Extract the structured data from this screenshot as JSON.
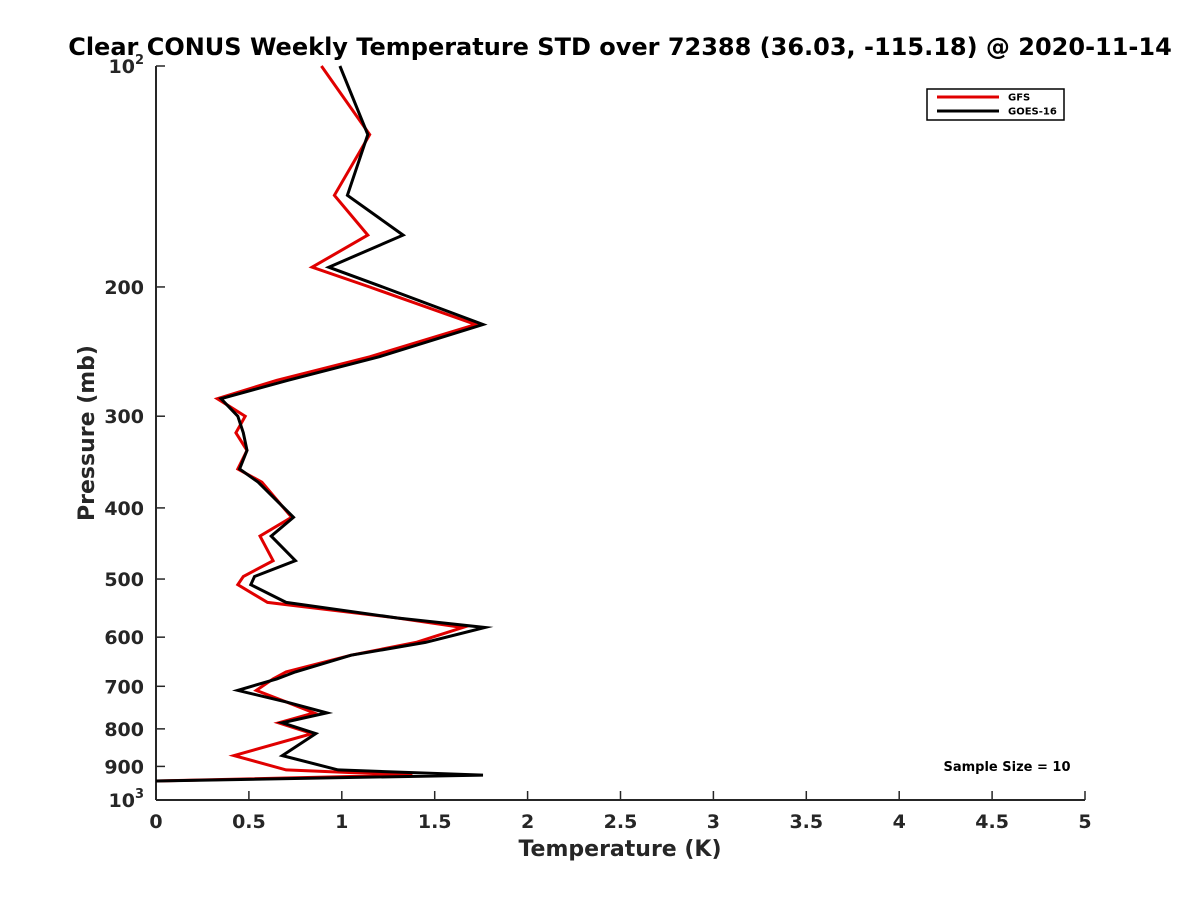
{
  "chart_data": {
    "type": "line",
    "title": "Clear CONUS Weekly Temperature STD over 72388 (36.03, -115.18) @ 2020-11-14",
    "xlabel": "Temperature (K)",
    "ylabel": "Pressure (mb)",
    "xlim": [
      0,
      5
    ],
    "ylim": [
      100,
      1000
    ],
    "y_scale": "log",
    "y_direction": "reversed",
    "x_ticks": [
      "0",
      "0.5",
      "1",
      "1.5",
      "2",
      "2.5",
      "3",
      "3.5",
      "4",
      "4.5",
      "5"
    ],
    "y_ticks": [
      {
        "value": 100,
        "base": "10",
        "exp": "2"
      },
      {
        "value": 200,
        "label": "200"
      },
      {
        "value": 300,
        "label": "300"
      },
      {
        "value": 400,
        "label": "400"
      },
      {
        "value": 500,
        "label": "500"
      },
      {
        "value": 600,
        "label": "600"
      },
      {
        "value": 700,
        "label": "700"
      },
      {
        "value": 800,
        "label": "800"
      },
      {
        "value": 900,
        "label": "900"
      },
      {
        "value": 1000,
        "base": "10",
        "exp": "3"
      }
    ],
    "grid": false,
    "legend_position": "top-right",
    "annotation": "Sample Size = 10",
    "series": [
      {
        "name": "GFS",
        "color": "#e00000",
        "points": [
          [
            0.89,
            100
          ],
          [
            1.15,
            124
          ],
          [
            0.96,
            150
          ],
          [
            1.14,
            170
          ],
          [
            0.84,
            188
          ],
          [
            1.15,
            200
          ],
          [
            1.72,
            225
          ],
          [
            1.15,
            249
          ],
          [
            0.65,
            268
          ],
          [
            0.33,
            284
          ],
          [
            0.48,
            300
          ],
          [
            0.43,
            316
          ],
          [
            0.49,
            334
          ],
          [
            0.44,
            354
          ],
          [
            0.57,
            369
          ],
          [
            0.73,
            412
          ],
          [
            0.56,
            437
          ],
          [
            0.63,
            472
          ],
          [
            0.47,
            496
          ],
          [
            0.44,
            509
          ],
          [
            0.6,
            538
          ],
          [
            1.3,
            565
          ],
          [
            1.65,
            582
          ],
          [
            1.4,
            610
          ],
          [
            1.05,
            635
          ],
          [
            0.7,
            669
          ],
          [
            0.63,
            684
          ],
          [
            0.54,
            709
          ],
          [
            0.7,
            735
          ],
          [
            0.85,
            761
          ],
          [
            0.66,
            785
          ],
          [
            0.84,
            812
          ],
          [
            0.42,
            870
          ],
          [
            0.7,
            910
          ],
          [
            1.38,
            925
          ],
          [
            0.0,
            942
          ]
        ]
      },
      {
        "name": "GOES-16",
        "color": "#000000",
        "points": [
          [
            0.99,
            100
          ],
          [
            1.14,
            124
          ],
          [
            1.03,
            150
          ],
          [
            1.33,
            170
          ],
          [
            0.93,
            188
          ],
          [
            1.22,
            200
          ],
          [
            1.76,
            225
          ],
          [
            1.2,
            249
          ],
          [
            0.71,
            268
          ],
          [
            0.35,
            284
          ],
          [
            0.44,
            300
          ],
          [
            0.47,
            316
          ],
          [
            0.49,
            334
          ],
          [
            0.45,
            354
          ],
          [
            0.55,
            369
          ],
          [
            0.74,
            412
          ],
          [
            0.62,
            437
          ],
          [
            0.75,
            472
          ],
          [
            0.53,
            496
          ],
          [
            0.51,
            509
          ],
          [
            0.7,
            538
          ],
          [
            1.3,
            565
          ],
          [
            1.77,
            582
          ],
          [
            1.45,
            610
          ],
          [
            1.05,
            635
          ],
          [
            0.75,
            669
          ],
          [
            0.65,
            684
          ],
          [
            0.44,
            709
          ],
          [
            0.7,
            735
          ],
          [
            0.92,
            761
          ],
          [
            0.68,
            785
          ],
          [
            0.86,
            812
          ],
          [
            0.68,
            870
          ],
          [
            0.98,
            910
          ],
          [
            1.76,
            925
          ],
          [
            0.0,
            942
          ]
        ]
      }
    ]
  }
}
